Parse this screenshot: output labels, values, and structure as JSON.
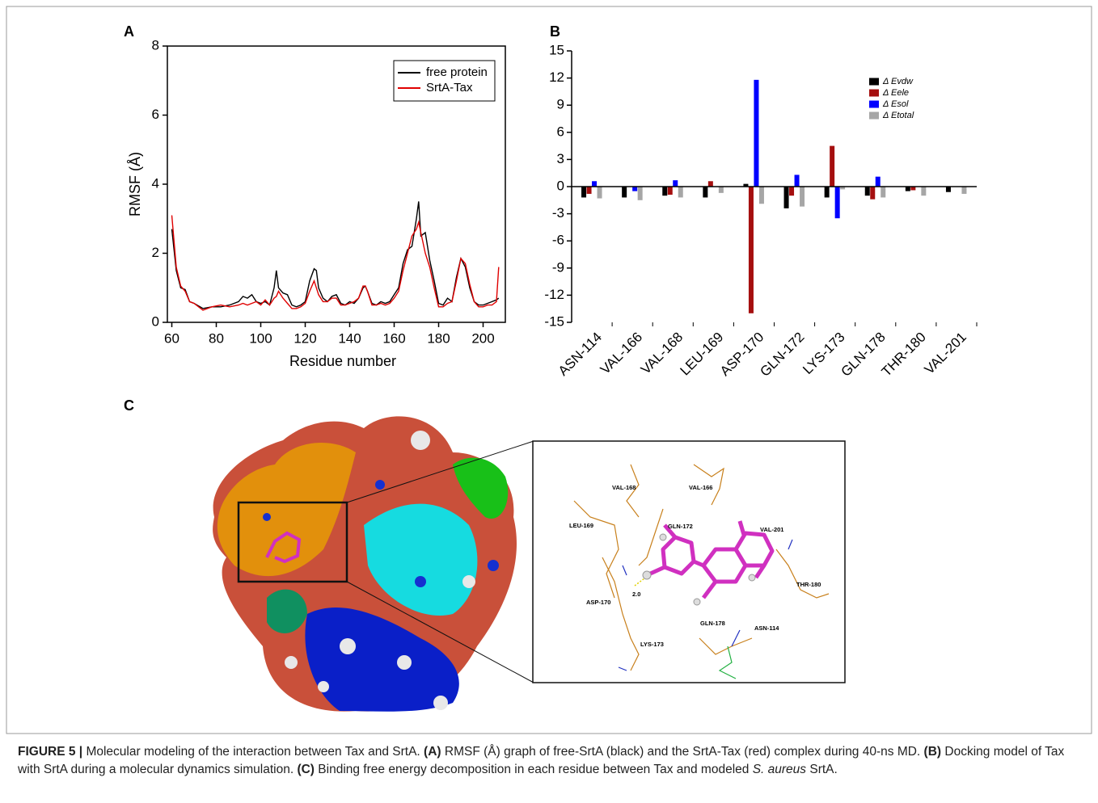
{
  "chart_data": [
    {
      "type": "line",
      "panel": "A",
      "xlabel": "Residue number",
      "ylabel": "RMSF (Å)",
      "x": [
        60,
        62,
        64,
        66,
        68,
        70,
        74,
        78,
        82,
        86,
        90,
        92,
        94,
        96,
        98,
        100,
        102,
        104,
        106,
        107,
        108,
        110,
        112,
        114,
        116,
        118,
        120,
        122,
        124,
        125,
        126,
        128,
        130,
        132,
        134,
        136,
        138,
        140,
        142,
        144,
        146,
        147,
        148,
        150,
        152,
        154,
        156,
        158,
        160,
        162,
        164,
        166,
        168,
        170,
        171,
        172,
        174,
        176,
        178,
        180,
        182,
        184,
        186,
        188,
        190,
        192,
        194,
        196,
        198,
        200,
        202,
        204,
        206,
        207
      ],
      "series": [
        {
          "name": "free protein",
          "color": "#000000",
          "values": [
            2.7,
            1.5,
            1.0,
            0.95,
            0.6,
            0.55,
            0.4,
            0.45,
            0.45,
            0.5,
            0.6,
            0.75,
            0.7,
            0.8,
            0.6,
            0.55,
            0.6,
            0.5,
            1.0,
            1.5,
            1.0,
            0.85,
            0.8,
            0.5,
            0.45,
            0.5,
            0.6,
            1.2,
            1.55,
            1.5,
            1.0,
            0.7,
            0.6,
            0.75,
            0.8,
            0.55,
            0.5,
            0.6,
            0.55,
            0.7,
            1.0,
            1.05,
            0.9,
            0.55,
            0.5,
            0.6,
            0.55,
            0.6,
            0.8,
            1.0,
            1.7,
            2.1,
            2.2,
            3.0,
            3.5,
            2.5,
            2.6,
            1.8,
            1.2,
            0.55,
            0.5,
            0.7,
            0.6,
            1.3,
            1.85,
            1.6,
            1.0,
            0.6,
            0.5,
            0.5,
            0.55,
            0.6,
            0.65,
            0.7
          ]
        },
        {
          "name": "SrtA-Tax",
          "color": "#e00000",
          "values": [
            3.1,
            1.6,
            1.05,
            0.9,
            0.6,
            0.55,
            0.35,
            0.45,
            0.5,
            0.45,
            0.5,
            0.55,
            0.5,
            0.55,
            0.6,
            0.5,
            0.65,
            0.5,
            0.7,
            0.75,
            0.9,
            0.7,
            0.55,
            0.4,
            0.4,
            0.45,
            0.55,
            0.9,
            1.2,
            1.0,
            0.8,
            0.6,
            0.6,
            0.7,
            0.7,
            0.5,
            0.5,
            0.55,
            0.6,
            0.7,
            1.05,
            1.05,
            0.9,
            0.5,
            0.5,
            0.55,
            0.5,
            0.55,
            0.7,
            0.9,
            1.5,
            2.0,
            2.5,
            2.7,
            2.9,
            2.6,
            2.0,
            1.6,
            1.0,
            0.45,
            0.45,
            0.55,
            0.6,
            1.2,
            1.85,
            1.7,
            1.1,
            0.6,
            0.45,
            0.45,
            0.5,
            0.5,
            0.6,
            1.6
          ]
        }
      ],
      "xlim": [
        58,
        210
      ],
      "xticks": [
        60,
        80,
        100,
        120,
        140,
        160,
        180,
        200
      ],
      "ylim": [
        0,
        8
      ],
      "yticks": [
        0,
        2,
        4,
        6,
        8
      ],
      "legend": "upper right"
    },
    {
      "type": "bar",
      "panel": "B",
      "categories": [
        "ASN-114",
        "VAL-166",
        "VAL-168",
        "LEU-169",
        "ASP-170",
        "GLN-172",
        "LYS-173",
        "GLN-178",
        "THR-180",
        "VAL-201"
      ],
      "series": [
        {
          "name": "Δ Evdw",
          "color": "#000000",
          "values": [
            -1.2,
            -1.2,
            -1.0,
            -1.2,
            0.3,
            -2.4,
            -1.2,
            -1.0,
            -0.5,
            -0.6
          ]
        },
        {
          "name": "Δ Eele",
          "color": "#a50f0f",
          "values": [
            -0.8,
            0,
            -0.9,
            0.6,
            -14.0,
            -1.0,
            4.5,
            -1.4,
            -0.4,
            0
          ]
        },
        {
          "name": "Δ Esol",
          "color": "#0000ff",
          "values": [
            0.6,
            -0.5,
            0.7,
            0,
            11.8,
            1.3,
            -3.5,
            1.1,
            0,
            0
          ]
        },
        {
          "name": "Δ Etotal",
          "color": "#a6a6a6",
          "values": [
            -1.3,
            -1.5,
            -1.2,
            -0.7,
            -1.9,
            -2.2,
            -0.3,
            -1.2,
            -1.0,
            -0.8
          ]
        }
      ],
      "ylim": [
        -15,
        15
      ],
      "yticks": [
        -15,
        -12,
        -9,
        -6,
        -3,
        0,
        3,
        6,
        9,
        12,
        15
      ],
      "legend": "upper right"
    }
  ],
  "panel_c": {
    "label": "C",
    "distance": "2.0",
    "residues": [
      "VAL-168",
      "VAL-166",
      "LEU-169",
      "GLN-172",
      "VAL-201",
      "THR-180",
      "ASP-170",
      "GLN-178",
      "ASN-114",
      "LYS-173"
    ]
  },
  "caption": {
    "label": "FIGURE 5 |",
    "intro": " Molecular modeling of the interaction between Tax and SrtA. ",
    "a_tag": "(A)",
    "a_text": " RMSF (Å) graph of free-SrtA (black) and the SrtA-Tax (red) complex during 40-ns MD. ",
    "b_tag": "(B)",
    "b_text": " Docking model of Tax with SrtA during a molecular dynamics simulation. ",
    "c_tag": "(C)",
    "c_text": " Binding free energy decomposition in each residue between Tax and modeled ",
    "species": "S. aureus",
    "c_end": " SrtA."
  }
}
